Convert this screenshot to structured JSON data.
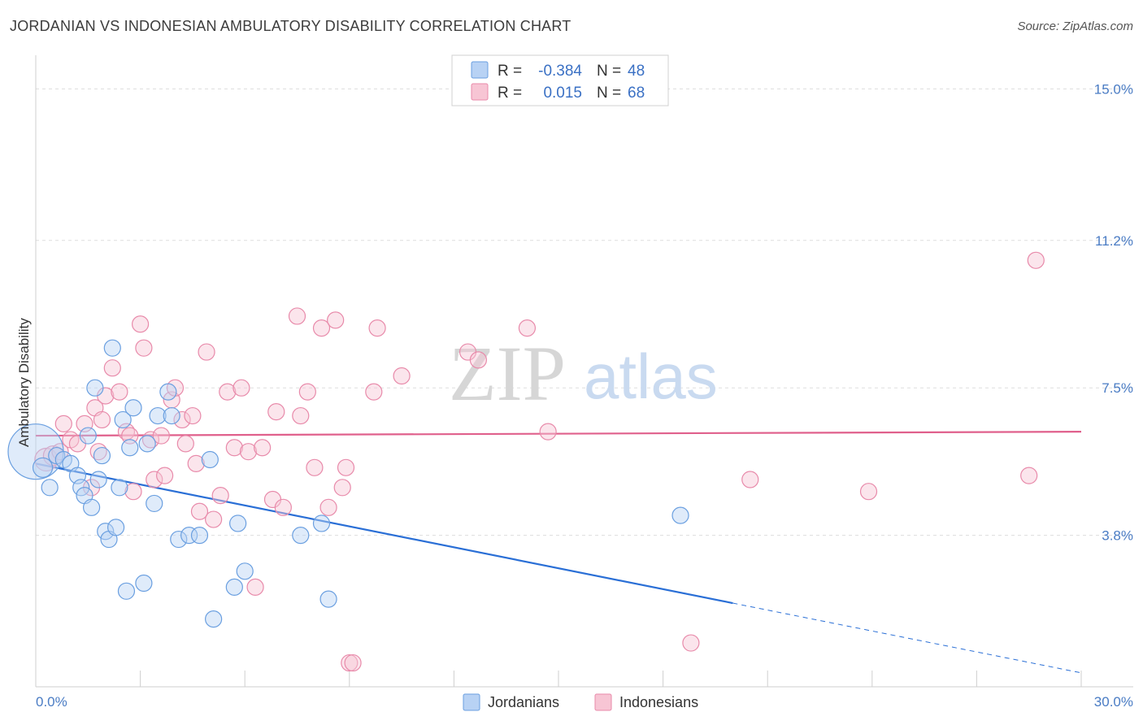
{
  "title": "JORDANIAN VS INDONESIAN AMBULATORY DISABILITY CORRELATION CHART",
  "source": "Source: ZipAtlas.com",
  "watermark": {
    "zip": "ZIP",
    "atlas": "atlas"
  },
  "legend_top": [
    {
      "r_label": "R =",
      "r_value": "-0.384",
      "n_label": "N =",
      "n_value": "48"
    },
    {
      "r_label": "R =",
      "r_value": "0.015",
      "n_label": "N =",
      "n_value": "68"
    }
  ],
  "legend_bottom": [
    "Jordanians",
    "Indonesians"
  ],
  "colors": {
    "jordanian_fill": "#b8d2f4",
    "jordanian_stroke": "#6a9fe0",
    "jordanian_line": "#2a6fd6",
    "indonesian_fill": "#f7c5d4",
    "indonesian_stroke": "#e88aaa",
    "indonesian_line": "#e0608c",
    "tick_label": "#4a7cc4",
    "grid": "#dddddd"
  },
  "chart_data": {
    "type": "scatter",
    "title": "JORDANIAN VS INDONESIAN AMBULATORY DISABILITY CORRELATION CHART",
    "xlabel": "",
    "ylabel": "Ambulatory Disability",
    "xlim": [
      0,
      30
    ],
    "ylim": [
      0,
      15.6
    ],
    "x_tick_labels": [
      "0.0%",
      "30.0%"
    ],
    "y_ticks": [
      3.8,
      7.5,
      11.2,
      15.0
    ],
    "y_tick_labels": [
      "3.8%",
      "7.5%",
      "11.2%",
      "15.0%"
    ],
    "grid": "horizontal dashed",
    "legend_position": "top-center",
    "series": [
      {
        "name": "Jordanians",
        "r": -0.384,
        "n": 48,
        "trend": {
          "x0": 0,
          "y0": 5.6,
          "x1": 20.0,
          "y1": 2.1,
          "dashed_to_x": 30,
          "dashed_to_y": 0.35
        },
        "points": [
          [
            0.0,
            5.9,
            34
          ],
          [
            0.2,
            5.5,
            12
          ],
          [
            0.4,
            5.0,
            10
          ],
          [
            0.6,
            5.8,
            10
          ],
          [
            0.8,
            5.7,
            10
          ],
          [
            1.0,
            5.6,
            10
          ],
          [
            1.2,
            5.3,
            10
          ],
          [
            1.3,
            5.0,
            10
          ],
          [
            1.4,
            4.8,
            10
          ],
          [
            1.5,
            6.3,
            10
          ],
          [
            1.6,
            4.5,
            10
          ],
          [
            1.7,
            7.5,
            10
          ],
          [
            1.8,
            5.2,
            10
          ],
          [
            1.9,
            5.8,
            10
          ],
          [
            2.0,
            3.9,
            10
          ],
          [
            2.1,
            3.7,
            10
          ],
          [
            2.2,
            8.5,
            10
          ],
          [
            2.3,
            4.0,
            10
          ],
          [
            2.4,
            5.0,
            10
          ],
          [
            2.5,
            6.7,
            10
          ],
          [
            2.6,
            2.4,
            10
          ],
          [
            2.7,
            6.0,
            10
          ],
          [
            2.8,
            7.0,
            10
          ],
          [
            3.1,
            2.6,
            10
          ],
          [
            3.2,
            6.1,
            10
          ],
          [
            3.4,
            4.6,
            10
          ],
          [
            3.5,
            6.8,
            10
          ],
          [
            3.8,
            7.4,
            10
          ],
          [
            3.9,
            6.8,
            10
          ],
          [
            4.1,
            3.7,
            10
          ],
          [
            4.4,
            3.8,
            10
          ],
          [
            4.7,
            3.8,
            10
          ],
          [
            5.0,
            5.7,
            10
          ],
          [
            5.1,
            1.7,
            10
          ],
          [
            5.7,
            2.5,
            10
          ],
          [
            5.8,
            4.1,
            10
          ],
          [
            6.0,
            2.9,
            10
          ],
          [
            7.6,
            3.8,
            10
          ],
          [
            8.2,
            4.1,
            10
          ],
          [
            8.4,
            2.2,
            10
          ],
          [
            18.5,
            4.3,
            10
          ]
        ]
      },
      {
        "name": "Indonesians",
        "r": 0.015,
        "n": 68,
        "trend": {
          "x0": 0,
          "y0": 6.3,
          "x1": 30,
          "y1": 6.4
        },
        "points": [
          [
            0.3,
            5.7,
            14
          ],
          [
            0.5,
            5.8,
            12
          ],
          [
            0.7,
            5.9,
            10
          ],
          [
            0.8,
            6.6,
            10
          ],
          [
            1.0,
            6.2,
            10
          ],
          [
            1.2,
            6.1,
            10
          ],
          [
            1.4,
            6.6,
            10
          ],
          [
            1.6,
            5.0,
            10
          ],
          [
            1.7,
            7.0,
            10
          ],
          [
            1.8,
            5.9,
            10
          ],
          [
            1.9,
            6.7,
            10
          ],
          [
            2.0,
            7.3,
            10
          ],
          [
            2.2,
            8.0,
            10
          ],
          [
            2.4,
            7.4,
            10
          ],
          [
            2.6,
            6.4,
            10
          ],
          [
            2.7,
            6.3,
            10
          ],
          [
            2.8,
            4.9,
            10
          ],
          [
            3.0,
            9.1,
            10
          ],
          [
            3.1,
            8.5,
            10
          ],
          [
            3.3,
            6.2,
            10
          ],
          [
            3.4,
            5.2,
            10
          ],
          [
            3.6,
            6.3,
            10
          ],
          [
            3.7,
            5.3,
            10
          ],
          [
            3.9,
            7.2,
            10
          ],
          [
            4.0,
            7.5,
            10
          ],
          [
            4.2,
            6.7,
            10
          ],
          [
            4.3,
            6.1,
            10
          ],
          [
            4.5,
            6.8,
            10
          ],
          [
            4.6,
            5.6,
            10
          ],
          [
            4.7,
            4.4,
            10
          ],
          [
            4.9,
            8.4,
            10
          ],
          [
            5.1,
            4.2,
            10
          ],
          [
            5.3,
            4.8,
            10
          ],
          [
            5.5,
            7.4,
            10
          ],
          [
            5.7,
            6.0,
            10
          ],
          [
            5.9,
            7.5,
            10
          ],
          [
            6.1,
            5.9,
            10
          ],
          [
            6.3,
            2.5,
            10
          ],
          [
            6.5,
            6.0,
            10
          ],
          [
            6.8,
            4.7,
            10
          ],
          [
            6.9,
            6.9,
            10
          ],
          [
            7.1,
            4.5,
            10
          ],
          [
            7.5,
            9.3,
            10
          ],
          [
            7.6,
            6.8,
            10
          ],
          [
            7.8,
            7.4,
            10
          ],
          [
            8.0,
            5.5,
            10
          ],
          [
            8.2,
            9.0,
            10
          ],
          [
            8.4,
            4.5,
            10
          ],
          [
            8.6,
            9.2,
            10
          ],
          [
            8.8,
            5.0,
            10
          ],
          [
            8.9,
            5.5,
            10
          ],
          [
            9.0,
            0.6,
            10
          ],
          [
            9.1,
            0.6,
            10
          ],
          [
            9.7,
            7.4,
            10
          ],
          [
            9.8,
            9.0,
            10
          ],
          [
            10.5,
            7.8,
            10
          ],
          [
            12.4,
            8.4,
            10
          ],
          [
            12.7,
            8.2,
            10
          ],
          [
            14.1,
            9.0,
            10
          ],
          [
            14.7,
            6.4,
            10
          ],
          [
            18.8,
            1.1,
            10
          ],
          [
            20.5,
            5.2,
            10
          ],
          [
            23.9,
            4.9,
            10
          ],
          [
            28.5,
            5.3,
            10
          ],
          [
            28.7,
            10.7,
            10
          ]
        ]
      }
    ]
  }
}
